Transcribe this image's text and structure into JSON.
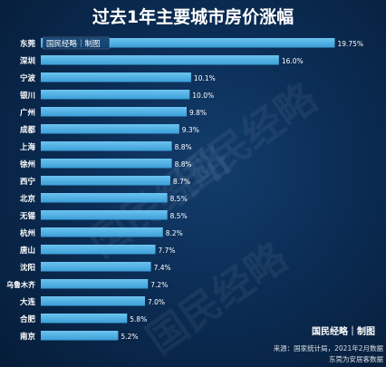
{
  "chart_data": {
    "type": "bar",
    "orientation": "horizontal",
    "title": "过去1年主要城市房价涨幅",
    "categories": [
      "东莞",
      "深圳",
      "宁波",
      "银川",
      "广州",
      "成都",
      "上海",
      "徐州",
      "西宁",
      "北京",
      "无锡",
      "杭州",
      "唐山",
      "沈阳",
      "乌鲁木齐",
      "大连",
      "合肥",
      "南京"
    ],
    "values": [
      19.75,
      16.0,
      10.1,
      10.0,
      9.8,
      9.3,
      8.8,
      8.8,
      8.7,
      8.5,
      8.5,
      8.2,
      7.7,
      7.4,
      7.2,
      7.0,
      5.8,
      5.2
    ],
    "value_labels": [
      "19.75%",
      "16.0%",
      "10.1%",
      "10.0%",
      "9.8%",
      "9.3%",
      "8.8%",
      "8.8%",
      "8.7%",
      "8.5%",
      "8.5%",
      "8.2%",
      "7.7%",
      "7.4%",
      "7.2%",
      "7.0%",
      "5.8%",
      "5.2%"
    ],
    "xlim": [
      0,
      21
    ],
    "grid": false,
    "legend": "none",
    "bar_color": "#3b9fd8",
    "bar_color_light": "#6cc3ef"
  },
  "branding": {
    "chip_text": "国民经略｜制图",
    "brand_text": "国民经略｜制图",
    "watermark": "国民经略"
  },
  "footer": {
    "source_line": "来源：国家统计局，2021年2月数据",
    "note_line": "东莞为安居客数据"
  }
}
